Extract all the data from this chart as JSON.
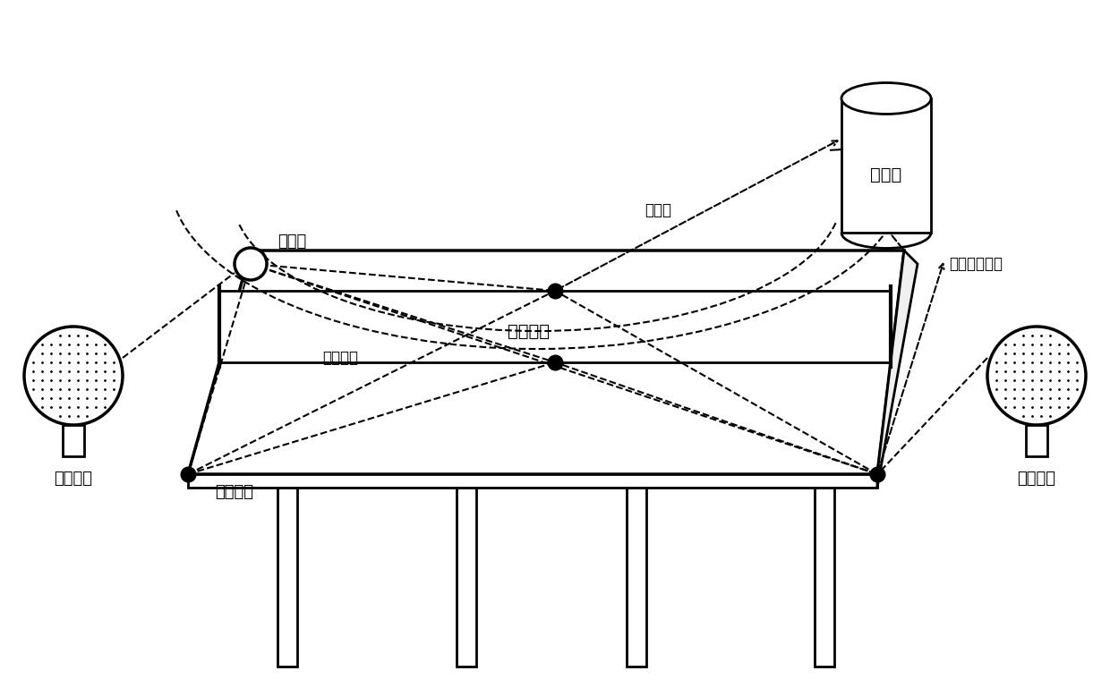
{
  "bg_color": "#ffffff",
  "title": "",
  "labels": {
    "server": "服务器",
    "ball": "乒乓球",
    "net": "乒乓球网",
    "table": "乒乓球台",
    "paddle_left": "乒乓球拍",
    "paddle_right": "乒乓球拍",
    "rf_signal": "射频信号",
    "time_value": "时刻值",
    "pressure": "压力传感数据"
  },
  "colors": {
    "black": "#000000",
    "white": "#ffffff",
    "light_gray": "#e0e0e0",
    "table_color": "#ffffff"
  },
  "font_size": 14
}
